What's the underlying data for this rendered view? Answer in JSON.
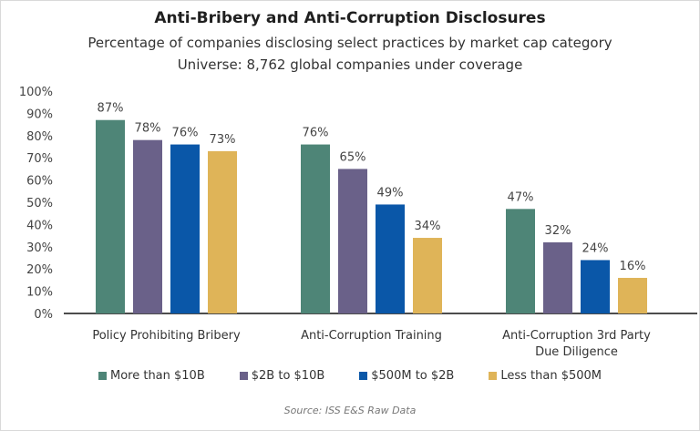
{
  "chart_data": {
    "type": "bar",
    "title": "Anti-Bribery and Anti-Corruption Disclosures",
    "subtitle": "Percentage of companies disclosing select practices by market cap category",
    "subtitle2": "Universe: 8,762 global companies under coverage",
    "categories": [
      "Policy Prohibiting Bribery",
      "Anti-Corruption Training",
      "Anti-Corruption 3rd Party Due Diligence"
    ],
    "series": [
      {
        "name": "More than $10B",
        "color": "#4e8577",
        "values": [
          87,
          76,
          47
        ]
      },
      {
        "name": "$2B to $10B",
        "color": "#6a6189",
        "values": [
          78,
          65,
          32
        ]
      },
      {
        "name": "$500M to $2B",
        "color": "#0a57a8",
        "values": [
          76,
          49,
          24
        ]
      },
      {
        "name": "Less than $500M",
        "color": "#dfb458",
        "values": [
          73,
          34,
          16
        ]
      }
    ],
    "yticks": [
      "0%",
      "10%",
      "20%",
      "30%",
      "40%",
      "50%",
      "60%",
      "70%",
      "80%",
      "90%",
      "100%"
    ],
    "ylim": [
      0,
      100
    ],
    "grid": false,
    "legend_position": "bottom",
    "source": "Source: ISS E&S Raw Data"
  }
}
